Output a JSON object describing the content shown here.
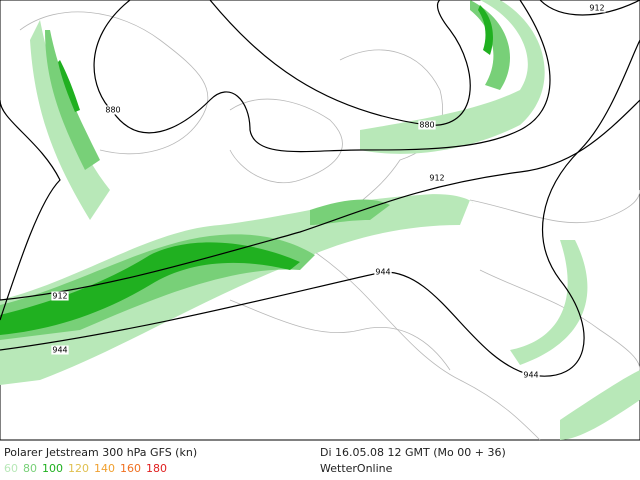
{
  "map": {
    "contour_labels": [
      "880",
      "880",
      "912",
      "912",
      "912",
      "944",
      "944",
      "944"
    ],
    "legend": {
      "title": "Polarer Jetstream 300 hPa GFS (kn)",
      "levels": [
        {
          "label": "60",
          "color": "#b8e8b8"
        },
        {
          "label": "80",
          "color": "#78d078"
        },
        {
          "label": "100",
          "color": "#20b020"
        },
        {
          "label": "120",
          "color": "#e0c050"
        },
        {
          "label": "140",
          "color": "#f0a030"
        },
        {
          "label": "160",
          "color": "#f07020"
        },
        {
          "label": "180",
          "color": "#e02020"
        }
      ]
    },
    "valid_time": "Di 16.05.08 12 GMT (Mo 00 + 36)",
    "source": "WetterOnline"
  }
}
